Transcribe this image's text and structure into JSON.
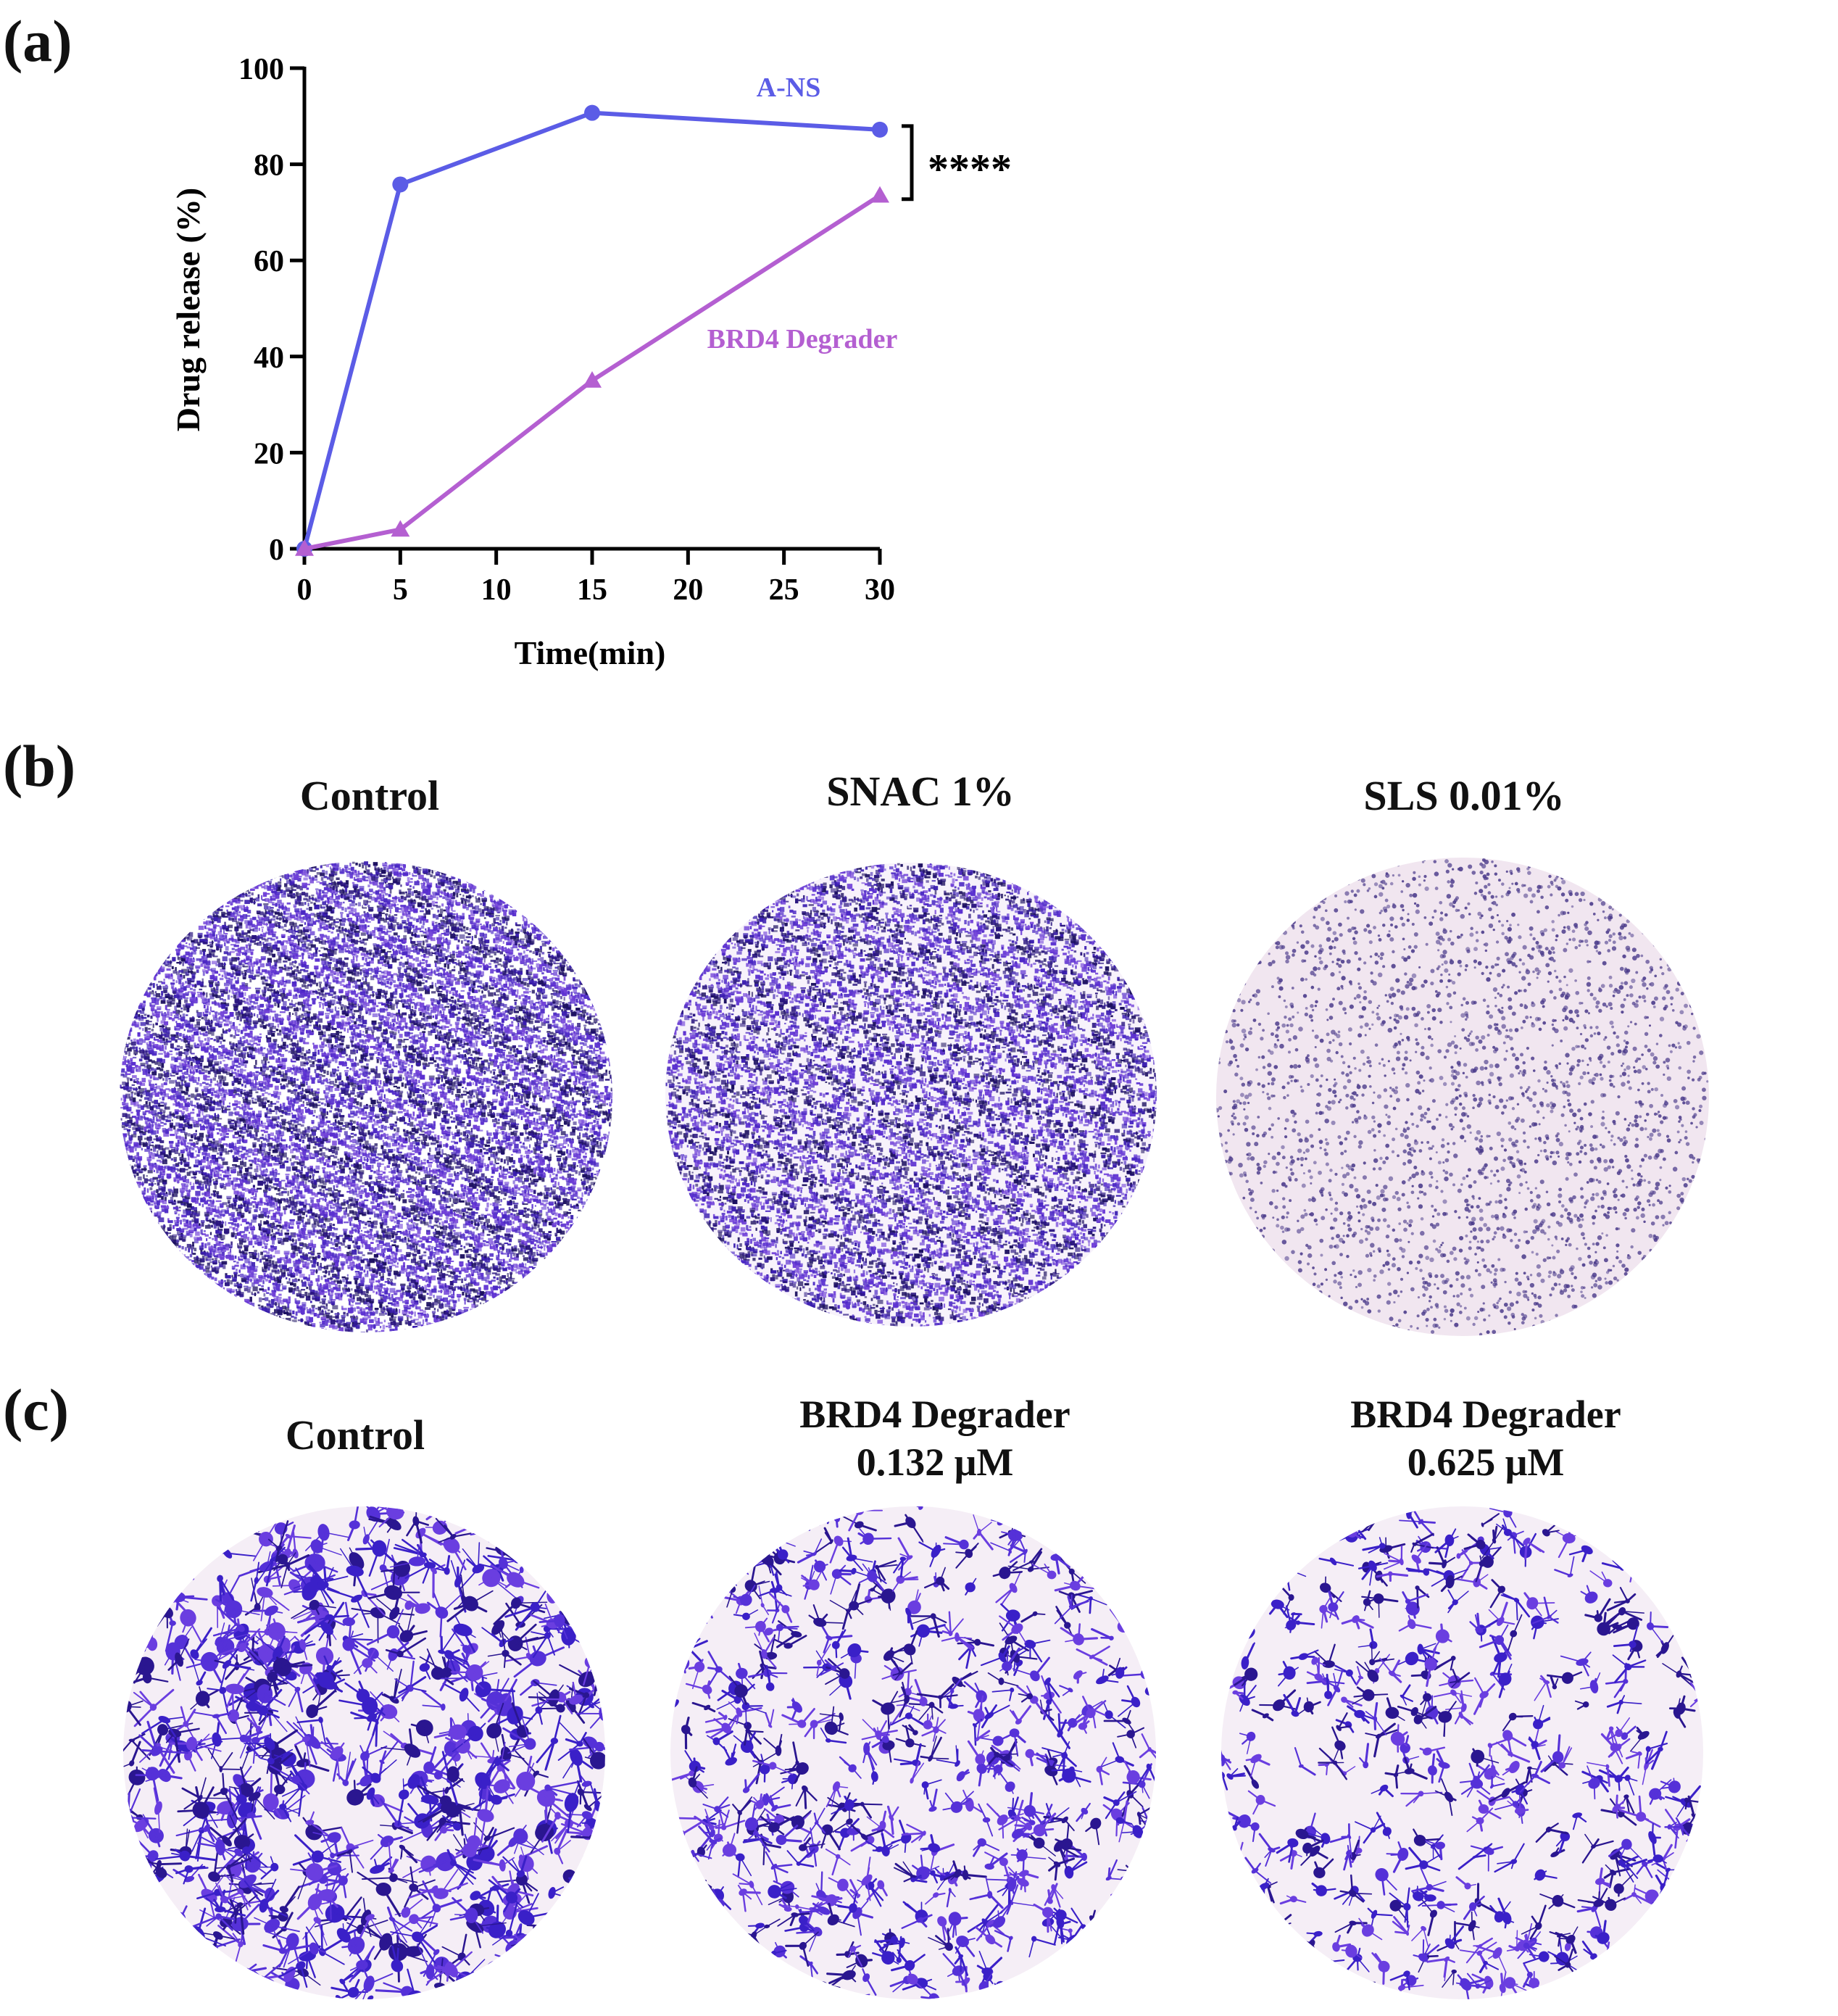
{
  "panels": {
    "a": {
      "letter": "(a)"
    },
    "b": {
      "letter": "(b)",
      "images": [
        {
          "title": "Control"
        },
        {
          "title": "SNAC 1%"
        },
        {
          "title": "SLS 0.01%"
        }
      ]
    },
    "c": {
      "letter": "(c)",
      "images": [
        {
          "title_line1": "Control",
          "title_line2": ""
        },
        {
          "title_line1": "BRD4 Degrader",
          "title_line2": "0.132 μM"
        },
        {
          "title_line1": "BRD4 Degrader",
          "title_line2": "0.625 μM"
        }
      ]
    }
  },
  "colors": {
    "series_a_ns": "#5b5ce6",
    "series_brd4": "#b45fd1",
    "stain_dark": "#3b1fb0",
    "stain_light": "#f3e9f3"
  },
  "chart_data": {
    "type": "line",
    "xlabel": "Time(min)",
    "ylabel": "Drug release (%)",
    "x_ticks": [
      "0",
      "5",
      "10",
      "15",
      "20",
      "25",
      "30"
    ],
    "y_ticks": [
      "0",
      "20",
      "40",
      "60",
      "80",
      "100"
    ],
    "ylim": [
      0,
      100
    ],
    "series": [
      {
        "name": "A-NS",
        "marker": "circle",
        "color": "#5b5ce6",
        "values": [
          0,
          75.8,
          90.7,
          87.2
        ]
      },
      {
        "name": "BRD4 Degrader",
        "marker": "triangle",
        "color": "#b45fd1",
        "values": [
          0,
          4,
          35,
          73.5
        ]
      }
    ],
    "x_values": [
      0,
      5,
      15,
      30
    ],
    "significance": "****"
  }
}
